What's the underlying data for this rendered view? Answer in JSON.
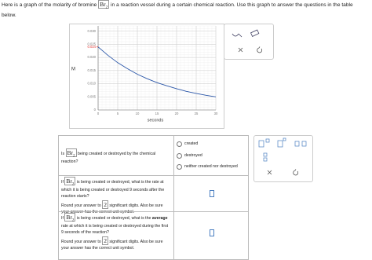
{
  "intro": {
    "before": "Here is a graph of the molarity of bromine",
    "formula": "Br",
    "subscript": "2",
    "after": "in a reaction vessel during a certain chemical reaction. Use this graph to answer the questions in the table below."
  },
  "chart_data": {
    "type": "line",
    "x_label": "seconds",
    "y_label": "M",
    "x": [
      0,
      2.5,
      5,
      7.5,
      10,
      12.5,
      15,
      17.5,
      20,
      22.5,
      25,
      27.5,
      30
    ],
    "values": [
      0.024,
      0.0208,
      0.018,
      0.0157,
      0.0136,
      0.0119,
      0.0104,
      0.0092,
      0.0081,
      0.0071,
      0.0063,
      0.0056,
      0.005
    ],
    "color": "#2a56a8",
    "xlim": [
      0,
      30
    ],
    "ylim": [
      0,
      0.032
    ],
    "xticks": [
      0,
      5,
      10,
      15,
      20,
      25,
      30
    ],
    "yticks": [
      0,
      0.005,
      {
        "value": 0.01,
        "label": "0.010"
      },
      {
        "value": 0.015,
        "label": "0.015"
      },
      {
        "value": 0.02,
        "label": "0.020"
      },
      {
        "value": 0.025,
        "label": "0.025"
      },
      {
        "value": 0.03,
        "label": "0.030"
      }
    ],
    "marker": {
      "value": 0.024,
      "color": "#e53935"
    },
    "grid": true
  },
  "table": {
    "rows": [
      {
        "q": {
          "pre": "Is",
          "formula": "Br",
          "subscript": "2",
          "post": "being created or destroyed by the chemical reaction?"
        },
        "options": [
          "created",
          "destroyed",
          "neither created nor destroyed"
        ]
      },
      {
        "q": {
          "pre": "If",
          "formula": "Br",
          "subscript": "2",
          "post": "is being created or destroyed, what is the rate at which it is being created or destroyed 9 seconds after the reaction starts?"
        },
        "note": {
          "pre": "Round your answer to",
          "digits": "2",
          "post": "significant digits. Also be sure your answer has the correct unit symbol."
        }
      },
      {
        "q": {
          "pre": "If",
          "formula": "Br",
          "subscript": "2",
          "mid": "is being created or destroyed, what is the",
          "bold": "average",
          "post": "rate at which it is being created or destroyed during the first 9 seconds of the reaction?"
        },
        "note": {
          "pre": "Round your answer to",
          "digits": "2",
          "post": "significant digits. Also be sure your answer has the correct unit symbol."
        }
      }
    ]
  }
}
